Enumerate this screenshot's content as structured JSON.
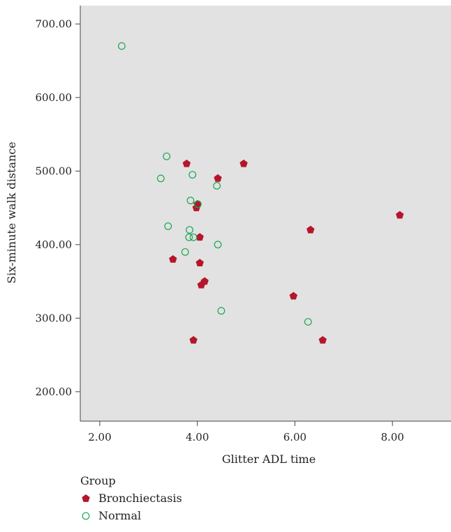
{
  "chart_data": {
    "type": "scatter",
    "title": "",
    "xlabel": "Glitter ADL time",
    "ylabel": "Six-minute walk distance",
    "xlim": [
      1.6,
      9.2
    ],
    "ylim": [
      160,
      725
    ],
    "x_ticks": [
      {
        "value": 2,
        "label": "2.00"
      },
      {
        "value": 4,
        "label": "4.00"
      },
      {
        "value": 6,
        "label": "6.00"
      },
      {
        "value": 8,
        "label": "8.00"
      }
    ],
    "y_ticks": [
      {
        "value": 200,
        "label": "200.00"
      },
      {
        "value": 300,
        "label": "300.00"
      },
      {
        "value": 400,
        "label": "400.00"
      },
      {
        "value": 500,
        "label": "500.00"
      },
      {
        "value": 600,
        "label": "600.00"
      },
      {
        "value": 700,
        "label": "700.00"
      }
    ],
    "grid": false,
    "plot_background": "#e2e2e2",
    "legend": {
      "title": "Group",
      "placement": "bottom-left"
    },
    "series": [
      {
        "name": "Bronchiectasis",
        "marker": "pentagon-filled",
        "color": "#b5162b",
        "points": [
          {
            "x": 3.78,
            "y": 510
          },
          {
            "x": 4.95,
            "y": 510
          },
          {
            "x": 4.42,
            "y": 490
          },
          {
            "x": 4.0,
            "y": 455
          },
          {
            "x": 3.98,
            "y": 450
          },
          {
            "x": 8.15,
            "y": 440
          },
          {
            "x": 6.32,
            "y": 420
          },
          {
            "x": 4.05,
            "y": 410
          },
          {
            "x": 3.5,
            "y": 380
          },
          {
            "x": 4.05,
            "y": 375
          },
          {
            "x": 4.15,
            "y": 350
          },
          {
            "x": 4.08,
            "y": 345
          },
          {
            "x": 5.97,
            "y": 330
          },
          {
            "x": 3.92,
            "y": 270
          },
          {
            "x": 6.57,
            "y": 270
          }
        ]
      },
      {
        "name": "Normal",
        "marker": "circle-open",
        "color": "#1aa650",
        "points": [
          {
            "x": 2.45,
            "y": 670
          },
          {
            "x": 3.37,
            "y": 520
          },
          {
            "x": 3.9,
            "y": 495
          },
          {
            "x": 3.25,
            "y": 490
          },
          {
            "x": 4.4,
            "y": 480
          },
          {
            "x": 3.86,
            "y": 460
          },
          {
            "x": 4.01,
            "y": 455
          },
          {
            "x": 3.4,
            "y": 425
          },
          {
            "x": 3.84,
            "y": 420
          },
          {
            "x": 3.83,
            "y": 410
          },
          {
            "x": 3.92,
            "y": 410
          },
          {
            "x": 4.42,
            "y": 400
          },
          {
            "x": 3.75,
            "y": 390
          },
          {
            "x": 4.49,
            "y": 310
          },
          {
            "x": 6.27,
            "y": 295
          }
        ]
      }
    ]
  }
}
